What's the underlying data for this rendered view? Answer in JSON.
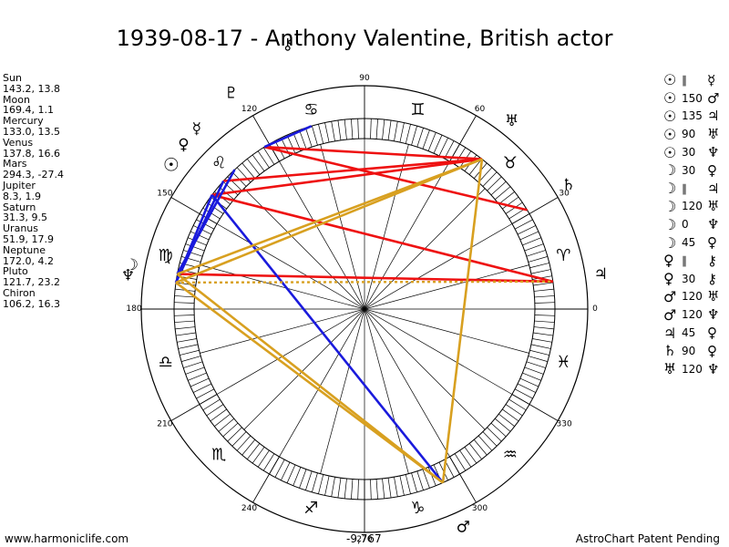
{
  "title": "1939-08-17 - Anthony Valentine, British actor",
  "positions": [
    {
      "name": "Sun",
      "value": "143.2, 13.8"
    },
    {
      "name": "Moon",
      "value": "169.4, 1.1"
    },
    {
      "name": "Mercury",
      "value": "133.0, 13.5"
    },
    {
      "name": "Venus",
      "value": "137.8, 16.6"
    },
    {
      "name": "Mars",
      "value": "294.3, -27.4"
    },
    {
      "name": "Jupiter",
      "value": "8.3, 1.9"
    },
    {
      "name": "Saturn",
      "value": "31.3, 9.5"
    },
    {
      "name": "Uranus",
      "value": "51.9, 17.9"
    },
    {
      "name": "Neptune",
      "value": "172.0, 4.2"
    },
    {
      "name": "Pluto",
      "value": "121.7, 23.2"
    },
    {
      "name": "Chiron",
      "value": "106.2, 16.3"
    }
  ],
  "aspects": [
    {
      "p1": "☉",
      "aspect": "∥",
      "p2": "☿"
    },
    {
      "p1": "☉",
      "aspect": "150",
      "p2": "♂"
    },
    {
      "p1": "☉",
      "aspect": "135",
      "p2": "♃"
    },
    {
      "p1": "☉",
      "aspect": "90",
      "p2": "♅"
    },
    {
      "p1": "☉",
      "aspect": "30",
      "p2": "♆"
    },
    {
      "p1": "☽",
      "aspect": "30",
      "p2": "♀"
    },
    {
      "p1": "☽",
      "aspect": "∥",
      "p2": "♃"
    },
    {
      "p1": "☽",
      "aspect": "120",
      "p2": "♅"
    },
    {
      "p1": "☽",
      "aspect": "0",
      "p2": "♆"
    },
    {
      "p1": "☽",
      "aspect": "45",
      "p2": "♀"
    },
    {
      "p1": "♀",
      "aspect": "∥",
      "p2": "⚷"
    },
    {
      "p1": "♀",
      "aspect": "30",
      "p2": "⚷"
    },
    {
      "p1": "♂",
      "aspect": "120",
      "p2": "♅"
    },
    {
      "p1": "♂",
      "aspect": "120",
      "p2": "♆"
    },
    {
      "p1": "♃",
      "aspect": "45",
      "p2": "♀"
    },
    {
      "p1": "♄",
      "aspect": "90",
      "p2": "♀"
    },
    {
      "p1": "♅",
      "aspect": "120",
      "p2": "♆"
    }
  ],
  "wheel": {
    "degree_labels": [
      "90",
      "60",
      "30",
      "0",
      "330",
      "300",
      "270",
      "240",
      "210",
      "180",
      "150",
      "120"
    ],
    "sign_glyphs": [
      "♈",
      "♉",
      "♊",
      "♋",
      "♌",
      "♍",
      "♎",
      "♏",
      "♐",
      "♑",
      "♒",
      "♓"
    ],
    "planet_glyphs": {
      "sun": "☉",
      "moon": "☽",
      "mercury": "☿",
      "venus": "♀",
      "mars": "♂",
      "jupiter": "♃",
      "saturn": "♄",
      "uranus": "♅",
      "neptune": "♆",
      "pluto": "♇",
      "chiron": "⚷"
    },
    "bottom_value": "-9,767",
    "colors": {
      "red": "#ee1111",
      "blue": "#1a1adc",
      "gold": "#d8a020"
    }
  },
  "footer": {
    "left": "www.harmoniclife.com",
    "right": "AstroChart Patent Pending"
  }
}
